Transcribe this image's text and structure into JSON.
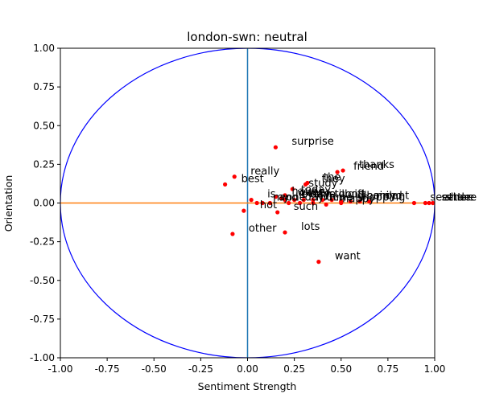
{
  "chart_data": {
    "type": "scatter",
    "title": "london-swn: neutral",
    "xlabel": "Sentiment Strength",
    "ylabel": "Orientation",
    "xlim": [
      -1.0,
      1.0
    ],
    "ylim": [
      -1.0,
      1.0
    ],
    "xticks": [
      "-1.00",
      "-0.75",
      "-0.50",
      "-0.25",
      "0.00",
      "0.25",
      "0.50",
      "0.75",
      "1.00"
    ],
    "yticks": [
      "1.00",
      "0.75",
      "0.50",
      "0.25",
      "0.00",
      "-0.25",
      "-0.50",
      "-0.75",
      "-1.00"
    ],
    "grid": false,
    "colors": {
      "points": "#ff0000",
      "circle": "#0000ff",
      "hline": "#ff7f0e",
      "vline": "#1f77b4"
    },
    "points": [
      {
        "x": 0.15,
        "y": 0.36,
        "label": "surprise"
      },
      {
        "x": 0.51,
        "y": 0.21,
        "label": "thanks"
      },
      {
        "x": 0.48,
        "y": 0.2,
        "label": "friend"
      },
      {
        "x": -0.07,
        "y": 0.17,
        "label": "really"
      },
      {
        "x": -0.12,
        "y": 0.12,
        "label": "best"
      },
      {
        "x": 0.32,
        "y": 0.13,
        "label": "the"
      },
      {
        "x": 0.31,
        "y": 0.12,
        "label": "they"
      },
      {
        "x": 0.24,
        "y": 0.09,
        "label": "study"
      },
      {
        "x": 0.2,
        "y": 0.05,
        "label": "today"
      },
      {
        "x": 0.15,
        "y": 0.04,
        "label": "have"
      },
      {
        "x": 0.18,
        "y": 0.03,
        "label": "want"
      },
      {
        "x": 0.2,
        "y": 0.02,
        "label": "every"
      },
      {
        "x": 0.25,
        "y": 0.02,
        "label": "day"
      },
      {
        "x": 0.3,
        "y": 0.02,
        "label": "life"
      },
      {
        "x": 0.35,
        "y": 0.02,
        "label": "still"
      },
      {
        "x": 0.4,
        "y": 0.02,
        "label": "good"
      },
      {
        "x": 0.45,
        "y": 0.02,
        "label": "gift"
      },
      {
        "x": 0.5,
        "y": 0.01,
        "label": "gloomy"
      },
      {
        "x": 0.55,
        "y": 0.01,
        "label": "hair"
      },
      {
        "x": 0.6,
        "y": 0.01,
        "label": "mind"
      },
      {
        "x": 0.65,
        "y": 0.01,
        "label": "dont"
      },
      {
        "x": 0.02,
        "y": 0.02,
        "label": "is"
      },
      {
        "x": 0.05,
        "y": 0.0,
        "label": "my"
      },
      {
        "x": 0.08,
        "y": 0.0,
        "label": "and"
      },
      {
        "x": 0.12,
        "y": 0.0,
        "label": "one"
      },
      {
        "x": 0.22,
        "y": 0.0,
        "label": "day"
      },
      {
        "x": 0.28,
        "y": 0.0,
        "label": "much"
      },
      {
        "x": 0.35,
        "y": 0.0,
        "label": "time"
      },
      {
        "x": 0.42,
        "y": -0.01,
        "label": "happy"
      },
      {
        "x": 0.5,
        "y": 0.0,
        "label": "shopping"
      },
      {
        "x": 0.89,
        "y": 0.0,
        "label": "see"
      },
      {
        "x": 0.95,
        "y": 0.0,
        "label": "settle"
      },
      {
        "x": 0.97,
        "y": 0.0,
        "label": "share"
      },
      {
        "x": 0.99,
        "y": 0.0,
        "label": "there"
      },
      {
        "x": -0.02,
        "y": -0.05,
        "label": "hot"
      },
      {
        "x": 0.16,
        "y": -0.06,
        "label": "such"
      },
      {
        "x": -0.08,
        "y": -0.2,
        "label": "other"
      },
      {
        "x": 0.2,
        "y": -0.19,
        "label": "lots"
      },
      {
        "x": 0.38,
        "y": -0.38,
        "label": "want"
      }
    ]
  }
}
